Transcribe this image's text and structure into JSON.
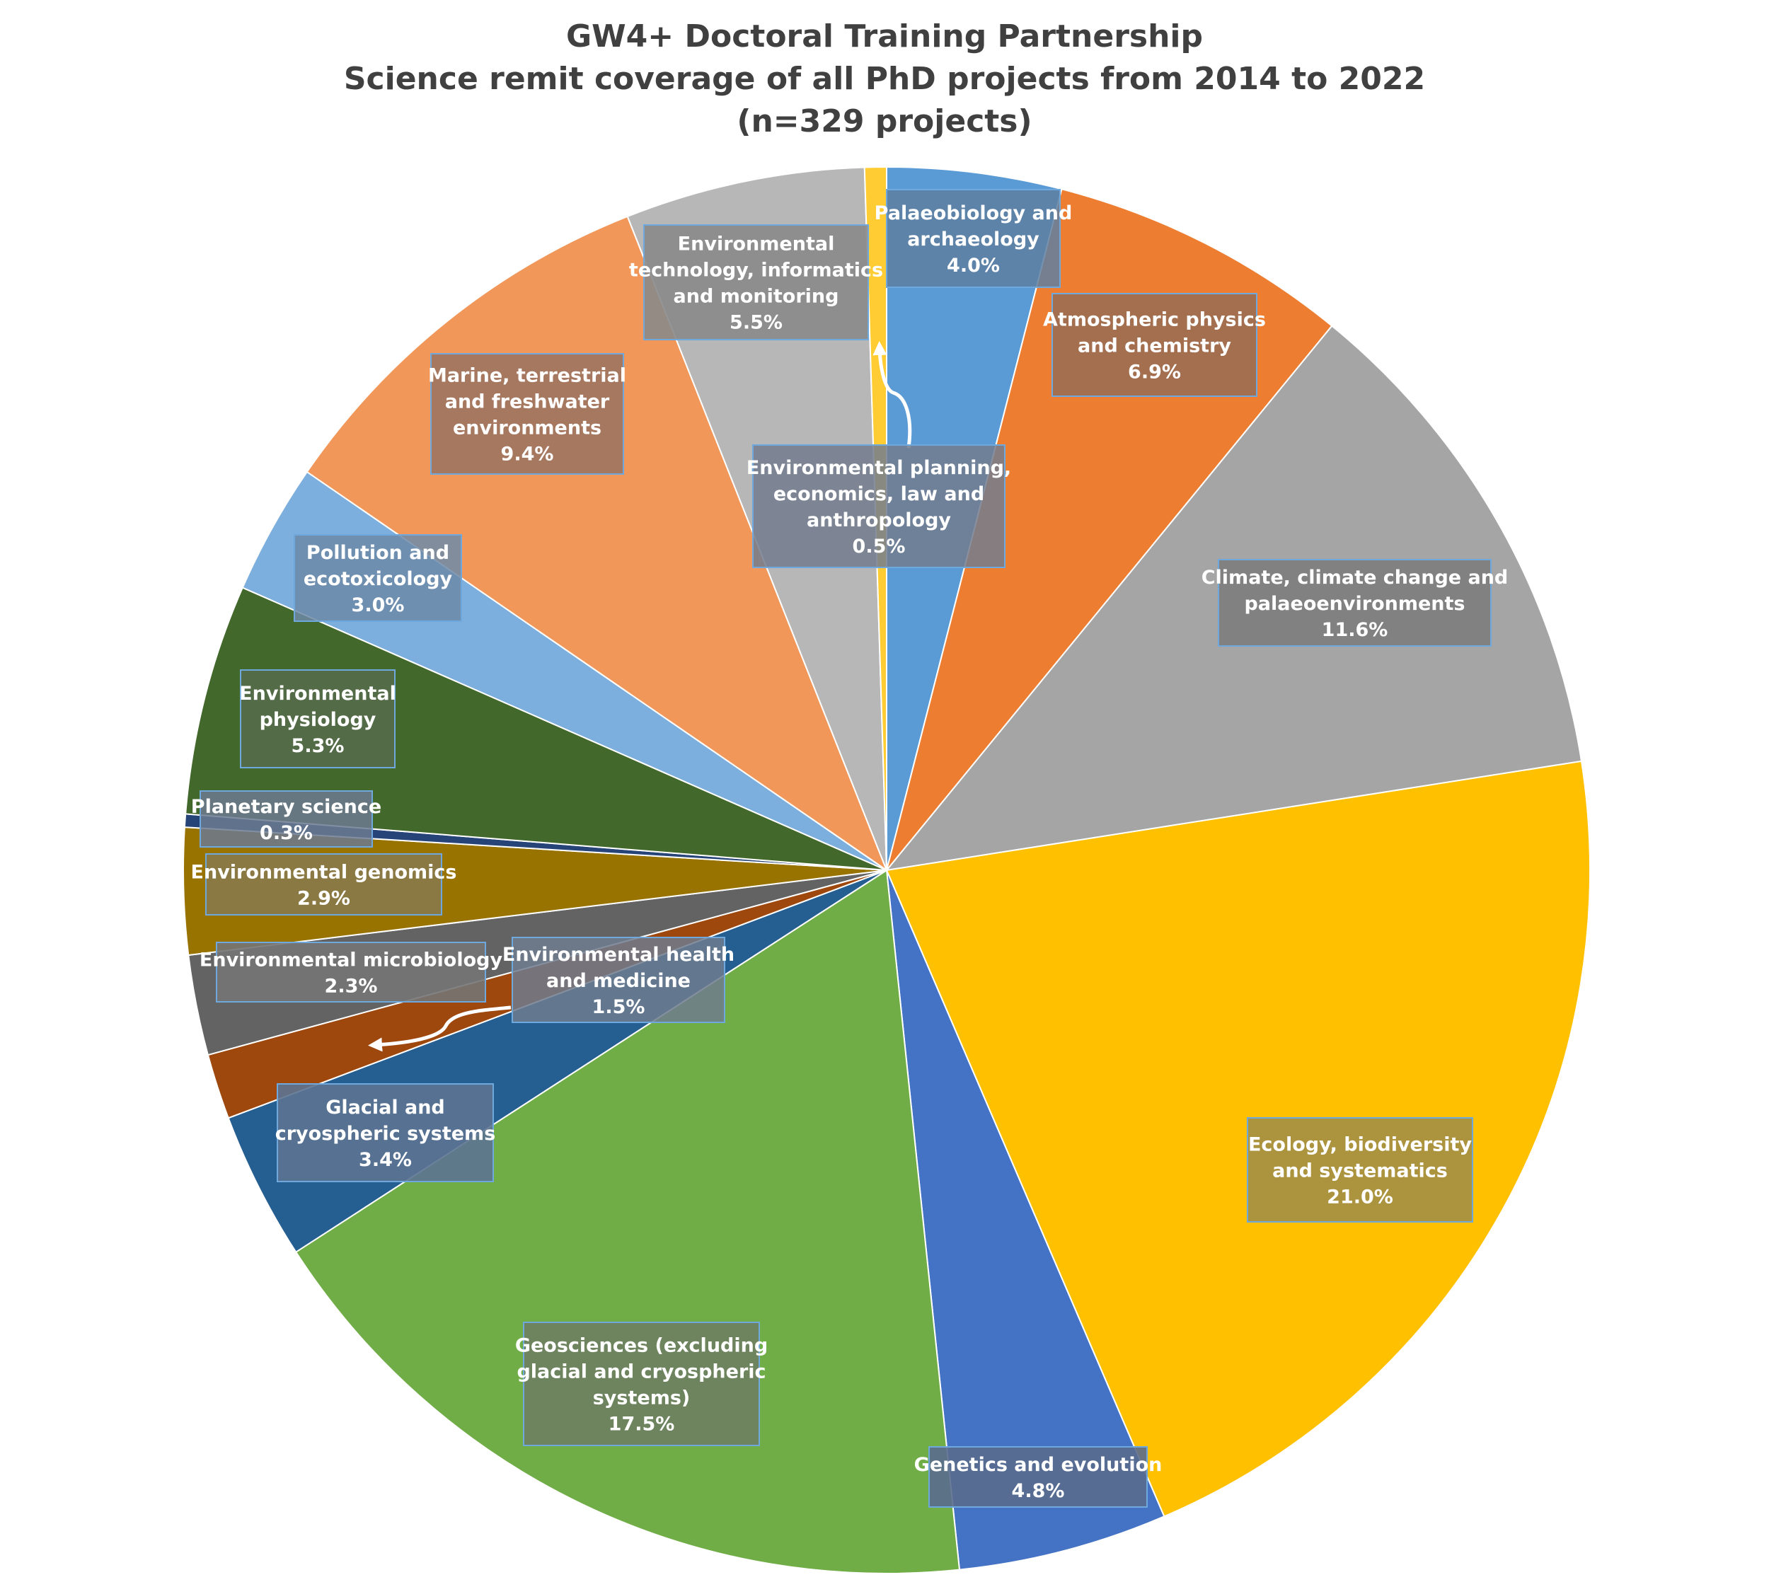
{
  "chart_data": {
    "type": "pie",
    "title_lines": [
      "GW4+ Doctoral Training Partnership",
      "Science remit coverage of all PhD projects from 2014 to 2022",
      "(n=329 projects)"
    ],
    "slices": [
      {
        "id": "palaeobiology",
        "label_lines": [
          "Palaeobiology and",
          "archaeology"
        ],
        "pct_label": "4.0%",
        "value": 4.0,
        "color": "#5b9bd5"
      },
      {
        "id": "atmospheric",
        "label_lines": [
          "Atmospheric physics",
          "and chemistry"
        ],
        "pct_label": "6.9%",
        "value": 6.9,
        "color": "#ed7d31"
      },
      {
        "id": "climate",
        "label_lines": [
          "Climate, climate change and",
          "palaeoenvironments"
        ],
        "pct_label": "11.6%",
        "value": 11.6,
        "color": "#a5a5a5"
      },
      {
        "id": "ecology",
        "label_lines": [
          "Ecology, biodiversity",
          "and systematics"
        ],
        "pct_label": "21.0%",
        "value": 21.0,
        "color": "#ffc000"
      },
      {
        "id": "genetics",
        "label_lines": [
          "Genetics and evolution"
        ],
        "pct_label": "4.8%",
        "value": 4.8,
        "color": "#4472c4"
      },
      {
        "id": "geosciences",
        "label_lines": [
          "Geosciences (excluding",
          "glacial and cryospheric",
          "systems)"
        ],
        "pct_label": "17.5%",
        "value": 17.5,
        "color": "#70ad47"
      },
      {
        "id": "glacial",
        "label_lines": [
          "Glacial and",
          "cryospheric systems"
        ],
        "pct_label": "3.4%",
        "value": 3.4,
        "color": "#255e91"
      },
      {
        "id": "health",
        "label_lines": [
          "Environmental health",
          "and medicine"
        ],
        "pct_label": "1.5%",
        "value": 1.5,
        "color": "#9e480e"
      },
      {
        "id": "microbiology",
        "label_lines": [
          "Environmental microbiology"
        ],
        "pct_label": "2.3%",
        "value": 2.3,
        "color": "#636363"
      },
      {
        "id": "genomics",
        "label_lines": [
          "Environmental genomics"
        ],
        "pct_label": "2.9%",
        "value": 2.9,
        "color": "#997300"
      },
      {
        "id": "planetary",
        "label_lines": [
          "Planetary science"
        ],
        "pct_label": "0.3%",
        "value": 0.3,
        "color": "#264478"
      },
      {
        "id": "physiology",
        "label_lines": [
          "Environmental",
          "physiology"
        ],
        "pct_label": "5.3%",
        "value": 5.3,
        "color": "#43682b"
      },
      {
        "id": "pollution",
        "label_lines": [
          "Pollution and",
          "ecotoxicology"
        ],
        "pct_label": "3.0%",
        "value": 3.0,
        "color": "#7cafdd"
      },
      {
        "id": "marine",
        "label_lines": [
          "Marine, terrestrial",
          "and freshwater",
          "environments"
        ],
        "pct_label": "9.4%",
        "value": 9.4,
        "color": "#f1975a"
      },
      {
        "id": "technology",
        "label_lines": [
          "Environmental",
          "technology, informatics",
          "and monitoring"
        ],
        "pct_label": "5.5%",
        "value": 5.5,
        "color": "#b7b7b7"
      },
      {
        "id": "planning",
        "label_lines": [
          "Environmental planning,",
          "economics, law and",
          "anthropology"
        ],
        "pct_label": "0.5%",
        "value": 0.5,
        "color": "#ffcd33"
      }
    ]
  }
}
